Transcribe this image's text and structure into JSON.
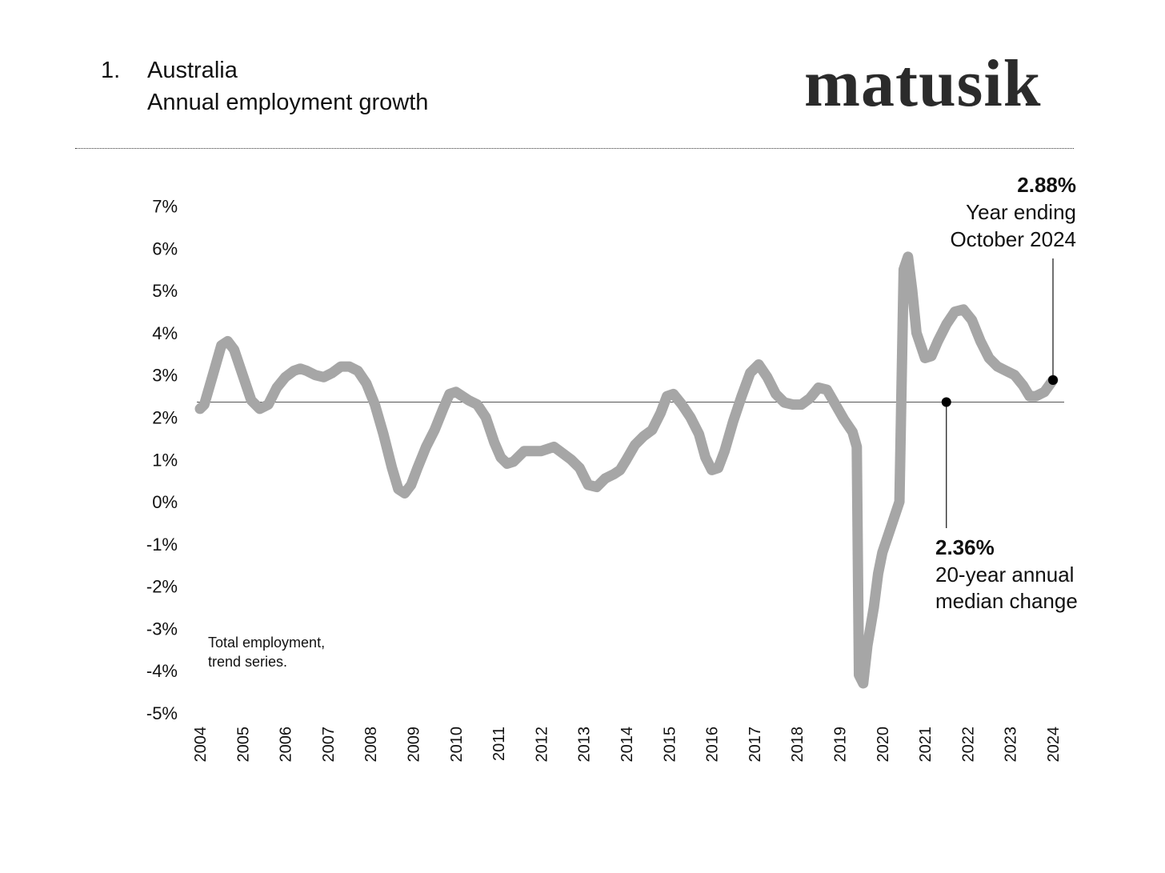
{
  "header": {
    "number": "1.",
    "title": "Australia",
    "subtitle": "Annual employment growth",
    "brand": "matusik"
  },
  "annotations": {
    "latest_value": "2.88%",
    "latest_line1": "Year ending",
    "latest_line2": "October 2024",
    "median_value": "2.36%",
    "median_line1": "20-year annual",
    "median_line2": "median change",
    "note_line1": "Total employment,",
    "note_line2": "trend series."
  },
  "chart_data": {
    "type": "line",
    "title": "Annual employment growth",
    "xlabel": "",
    "ylabel": "",
    "ylim": [
      -5,
      7
    ],
    "xlim": [
      2004,
      2024
    ],
    "x_ticks": [
      "2004",
      "2005",
      "2006",
      "2007",
      "2008",
      "2009",
      "2010",
      "2011",
      "2012",
      "2013",
      "2014",
      "2015",
      "2016",
      "2017",
      "2018",
      "2019",
      "2020",
      "2021",
      "2022",
      "2023",
      "2024"
    ],
    "y_ticks": [
      {
        "value": 7,
        "label": "7%"
      },
      {
        "value": 6,
        "label": "6%"
      },
      {
        "value": 5,
        "label": "5%"
      },
      {
        "value": 4,
        "label": "4%"
      },
      {
        "value": 3,
        "label": "3%"
      },
      {
        "value": 2,
        "label": "2%"
      },
      {
        "value": 1,
        "label": "1%"
      },
      {
        "value": 0,
        "label": "0%"
      },
      {
        "value": -1,
        "label": "-1%"
      },
      {
        "value": -2,
        "label": "-2%"
      },
      {
        "value": -3,
        "label": "-3%"
      },
      {
        "value": -4,
        "label": "-4%"
      },
      {
        "value": -5,
        "label": "-5%"
      }
    ],
    "grid": false,
    "legend": "none",
    "median_reference": 2.36,
    "line_color": "#a6a6a6",
    "series": [
      {
        "points": [
          [
            2004.0,
            2.2
          ],
          [
            2004.1,
            2.3
          ],
          [
            2004.3,
            3.0
          ],
          [
            2004.5,
            3.7
          ],
          [
            2004.65,
            3.8
          ],
          [
            2004.8,
            3.6
          ],
          [
            2005.0,
            3.0
          ],
          [
            2005.2,
            2.4
          ],
          [
            2005.4,
            2.2
          ],
          [
            2005.6,
            2.3
          ],
          [
            2005.8,
            2.7
          ],
          [
            2006.0,
            2.95
          ],
          [
            2006.2,
            3.1
          ],
          [
            2006.35,
            3.15
          ],
          [
            2006.5,
            3.1
          ],
          [
            2006.7,
            3.0
          ],
          [
            2006.9,
            2.95
          ],
          [
            2007.1,
            3.05
          ],
          [
            2007.3,
            3.2
          ],
          [
            2007.5,
            3.2
          ],
          [
            2007.7,
            3.1
          ],
          [
            2007.9,
            2.8
          ],
          [
            2008.1,
            2.3
          ],
          [
            2008.3,
            1.6
          ],
          [
            2008.5,
            0.8
          ],
          [
            2008.65,
            0.3
          ],
          [
            2008.8,
            0.2
          ],
          [
            2008.95,
            0.4
          ],
          [
            2009.1,
            0.8
          ],
          [
            2009.3,
            1.3
          ],
          [
            2009.5,
            1.7
          ],
          [
            2009.7,
            2.2
          ],
          [
            2009.85,
            2.55
          ],
          [
            2010.0,
            2.6
          ],
          [
            2010.3,
            2.4
          ],
          [
            2010.5,
            2.3
          ],
          [
            2010.7,
            2.0
          ],
          [
            2010.9,
            1.4
          ],
          [
            2011.05,
            1.05
          ],
          [
            2011.2,
            0.9
          ],
          [
            2011.35,
            0.95
          ],
          [
            2011.6,
            1.2
          ],
          [
            2011.8,
            1.2
          ],
          [
            2012.0,
            1.2
          ],
          [
            2012.15,
            1.25
          ],
          [
            2012.3,
            1.3
          ],
          [
            2012.5,
            1.15
          ],
          [
            2012.7,
            1.0
          ],
          [
            2012.9,
            0.8
          ],
          [
            2013.1,
            0.4
          ],
          [
            2013.3,
            0.35
          ],
          [
            2013.5,
            0.55
          ],
          [
            2013.7,
            0.65
          ],
          [
            2013.85,
            0.75
          ],
          [
            2014.0,
            1.0
          ],
          [
            2014.2,
            1.35
          ],
          [
            2014.4,
            1.55
          ],
          [
            2014.6,
            1.7
          ],
          [
            2014.8,
            2.1
          ],
          [
            2014.95,
            2.5
          ],
          [
            2015.1,
            2.55
          ],
          [
            2015.3,
            2.3
          ],
          [
            2015.5,
            2.0
          ],
          [
            2015.7,
            1.6
          ],
          [
            2015.85,
            1.05
          ],
          [
            2016.0,
            0.75
          ],
          [
            2016.15,
            0.8
          ],
          [
            2016.3,
            1.2
          ],
          [
            2016.5,
            1.9
          ],
          [
            2016.7,
            2.5
          ],
          [
            2016.9,
            3.05
          ],
          [
            2017.1,
            3.25
          ],
          [
            2017.3,
            2.95
          ],
          [
            2017.5,
            2.55
          ],
          [
            2017.7,
            2.35
          ],
          [
            2017.9,
            2.3
          ],
          [
            2018.1,
            2.3
          ],
          [
            2018.3,
            2.45
          ],
          [
            2018.5,
            2.7
          ],
          [
            2018.7,
            2.65
          ],
          [
            2018.9,
            2.3
          ],
          [
            2019.1,
            1.95
          ],
          [
            2019.3,
            1.65
          ],
          [
            2019.4,
            1.3
          ],
          [
            2019.45,
            -4.1
          ],
          [
            2019.55,
            -4.3
          ],
          [
            2019.65,
            -3.4
          ],
          [
            2019.8,
            -2.5
          ],
          [
            2019.9,
            -1.7
          ],
          [
            2020.0,
            -1.2
          ],
          [
            2020.2,
            -0.6
          ],
          [
            2020.4,
            0.0
          ],
          [
            2020.5,
            5.5
          ],
          [
            2020.6,
            5.8
          ],
          [
            2020.7,
            5.0
          ],
          [
            2020.8,
            4.0
          ],
          [
            2021.0,
            3.4
          ],
          [
            2021.15,
            3.45
          ],
          [
            2021.3,
            3.8
          ],
          [
            2021.5,
            4.2
          ],
          [
            2021.7,
            4.5
          ],
          [
            2021.9,
            4.55
          ],
          [
            2022.1,
            4.3
          ],
          [
            2022.3,
            3.8
          ],
          [
            2022.5,
            3.4
          ],
          [
            2022.7,
            3.2
          ],
          [
            2022.9,
            3.1
          ],
          [
            2023.1,
            3.0
          ],
          [
            2023.3,
            2.75
          ],
          [
            2023.45,
            2.5
          ],
          [
            2023.6,
            2.5
          ],
          [
            2023.8,
            2.6
          ],
          [
            2024.0,
            2.88
          ]
        ]
      }
    ],
    "highlight_points": [
      {
        "x": 2024.0,
        "y": 2.88
      },
      {
        "x": 2021.5,
        "y": 2.36
      }
    ]
  }
}
